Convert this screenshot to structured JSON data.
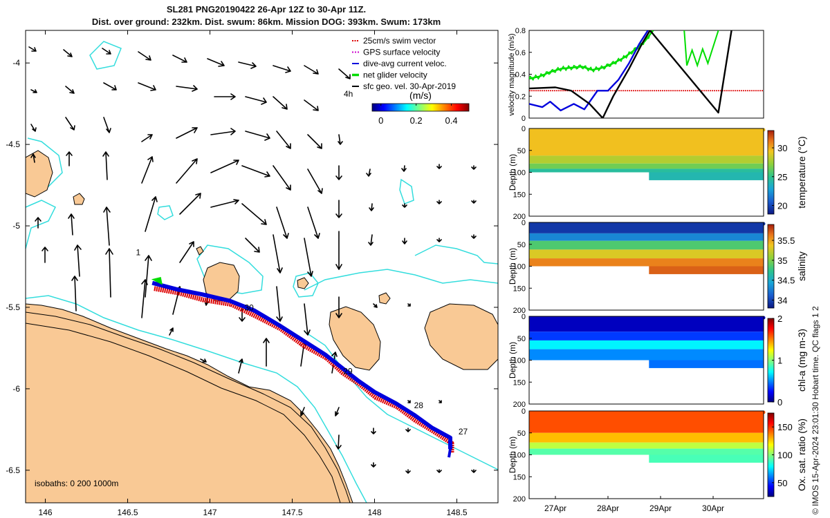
{
  "title": {
    "line1": "SL281 PNG20190422 26-Apr 12Z to 30-Apr 11Z.",
    "line2": "Dist. over ground: 232km. Dist. swum: 86km. Mission DOG: 393km. Swum: 173km"
  },
  "credit": "© IMOS 15-Apr-2024 23:01:30 Hobart time. QC flags 1  2",
  "chart_data": [
    {
      "type": "scatter",
      "name": "map",
      "xticks": [
        "146",
        "146.5",
        "147",
        "147.5",
        "148",
        "148.5"
      ],
      "xtick_values": [
        146,
        146.5,
        147,
        147.5,
        148,
        148.5
      ],
      "yticks": [
        "-4",
        "-4.5",
        "-5",
        "-5.5",
        "-6",
        "-6.5"
      ],
      "ytick_values": [
        -4,
        -4.5,
        -5,
        -5.5,
        -6,
        -6.5
      ],
      "xlim": [
        145.88,
        148.75
      ],
      "ylim": [
        -6.7,
        -3.8
      ],
      "legend": [
        {
          "label": "25cm/s swim vector",
          "color": "#dd0000"
        },
        {
          "label": "GPS surface velocity",
          "color": "#cc00cc"
        },
        {
          "label": "dive-avg current veloc.",
          "color": "#0000dd"
        },
        {
          "label": "net glider velocity",
          "color": "#00dd00"
        },
        {
          "label": "sfc geo. vel. 30-Apr-2019",
          "color": "#000000"
        }
      ],
      "colorbar": {
        "label": "(m/s)",
        "ticks": [
          "0",
          "0.2",
          "0.4"
        ],
        "tick_values": [
          0,
          0.2,
          0.4
        ],
        "range": [
          -0.05,
          0.5
        ]
      },
      "annotations": {
        "scale_label": "4h",
        "isobaths": "isobaths: 0   200  1000m"
      },
      "track": [
        [
          148.46,
          -6.37
        ],
        [
          148.46,
          -6.3
        ],
        [
          148.35,
          -6.24
        ],
        [
          148.24,
          -6.16
        ],
        [
          148.13,
          -6.09
        ],
        [
          148.0,
          -6.02
        ],
        [
          147.9,
          -5.95
        ],
        [
          147.8,
          -5.87
        ],
        [
          147.7,
          -5.79
        ],
        [
          147.56,
          -5.7
        ],
        [
          147.42,
          -5.61
        ],
        [
          147.27,
          -5.52
        ],
        [
          147.12,
          -5.46
        ],
        [
          146.95,
          -5.42
        ],
        [
          146.8,
          -5.39
        ],
        [
          146.65,
          -5.35
        ]
      ],
      "day_labels": [
        {
          "text": "27",
          "lon": 148.51,
          "lat": -6.28
        },
        {
          "text": "28",
          "lon": 148.24,
          "lat": -6.12
        },
        {
          "text": "29",
          "lon": 147.81,
          "lat": -5.91
        },
        {
          "text": "30",
          "lon": 147.21,
          "lat": -5.52
        },
        {
          "text": "1",
          "lon": 146.55,
          "lat": -5.18
        }
      ]
    },
    {
      "type": "line",
      "name": "velocity",
      "ylabel": "velocity magnitude (m/s)",
      "yticks": [
        "0",
        "0.2",
        "0.4",
        "0.6",
        "0.8"
      ],
      "ytick_values": [
        0,
        0.2,
        0.4,
        0.6,
        0.8
      ],
      "ylim": [
        0,
        0.8
      ],
      "xlim": [
        26.5,
        30.96
      ],
      "series": [
        {
          "name": "swim vector",
          "color": "#dd0000",
          "x": [
            26.5,
            30.96
          ],
          "y": [
            0.25,
            0.25
          ]
        },
        {
          "name": "net glider velocity",
          "color": "#00dd00",
          "x": [
            26.5,
            26.7,
            26.9,
            27.1,
            27.3,
            27.5,
            27.7,
            27.9,
            28.1,
            28.3,
            28.5,
            28.7,
            28.86
          ],
          "y": [
            0.36,
            0.38,
            0.42,
            0.45,
            0.46,
            0.47,
            0.44,
            0.46,
            0.5,
            0.55,
            0.62,
            0.7,
            0.8
          ]
        },
        {
          "name": "dive-avg current",
          "color": "#0000dd",
          "x": [
            26.5,
            26.75,
            26.9,
            27.1,
            27.35,
            27.55,
            27.8,
            28.0,
            28.2,
            28.4,
            28.6,
            28.76
          ],
          "y": [
            0.13,
            0.1,
            0.15,
            0.07,
            0.13,
            0.08,
            0.25,
            0.25,
            0.35,
            0.5,
            0.68,
            0.8
          ]
        },
        {
          "name": "sfc geo. vel.",
          "color": "#000000",
          "x": [
            26.5,
            27.0,
            27.3,
            27.65,
            27.9,
            28.1,
            28.4,
            28.65,
            28.8,
            30.1,
            30.35
          ],
          "y": [
            0.27,
            0.28,
            0.25,
            0.13,
            0.0,
            0.2,
            0.45,
            0.68,
            0.8,
            0.05,
            0.8
          ]
        }
      ]
    },
    {
      "type": "heatmap",
      "name": "temperature",
      "ylabel": "Depth (m)",
      "cbar_label": "temperature (°C)",
      "cbar_ticks": [
        "20",
        "25",
        "30"
      ],
      "cbar_tick_values": [
        20,
        25,
        30
      ],
      "cbar_range": [
        18.5,
        33
      ],
      "yticks": [
        "0",
        "50",
        "100",
        "150",
        "200"
      ],
      "ytick_values": [
        0,
        50,
        100,
        150,
        200
      ],
      "colormap": "parula",
      "bands": [
        {
          "top": 0,
          "bottom": 62,
          "value": 29.5
        },
        {
          "top": 62,
          "bottom": 80,
          "value": 28
        },
        {
          "top": 80,
          "bottom": 92,
          "value": 26.5
        },
        {
          "top": 92,
          "bottom": 100,
          "value": 24.5
        }
      ],
      "deep_segment": {
        "from_day": 28.78,
        "bottom": 118,
        "value": 24
      }
    },
    {
      "type": "heatmap",
      "name": "salinity",
      "ylabel": "Depth (m)",
      "cbar_label": "salinity",
      "cbar_ticks": [
        "34",
        "34.5",
        "35",
        "35.5"
      ],
      "cbar_tick_values": [
        34,
        34.5,
        35,
        35.5
      ],
      "cbar_range": [
        33.8,
        35.9
      ],
      "yticks": [
        "0",
        "50",
        "100",
        "150",
        "200"
      ],
      "ytick_values": [
        0,
        50,
        100,
        150,
        200
      ],
      "colormap": "parula",
      "bands": [
        {
          "top": 0,
          "bottom": 25,
          "value": 33.95
        },
        {
          "top": 25,
          "bottom": 42,
          "value": 34.3
        },
        {
          "top": 42,
          "bottom": 62,
          "value": 34.85
        },
        {
          "top": 62,
          "bottom": 82,
          "value": 35.3
        },
        {
          "top": 82,
          "bottom": 100,
          "value": 35.6
        }
      ],
      "deep_segment": {
        "from_day": 28.78,
        "bottom": 118,
        "value": 35.7
      }
    },
    {
      "type": "heatmap",
      "name": "chl-a",
      "ylabel": "Depth (m)",
      "cbar_label": "chl-a (mg m-3)",
      "cbar_ticks": [
        "0",
        "1",
        "2"
      ],
      "cbar_tick_values": [
        0,
        1,
        2
      ],
      "cbar_range": [
        0,
        2
      ],
      "yticks": [
        "0",
        "50",
        "100",
        "150",
        "200"
      ],
      "ytick_values": [
        0,
        50,
        100,
        150,
        200
      ],
      "colormap": "parula",
      "bands": [
        {
          "top": 0,
          "bottom": 35,
          "value": 0.12
        },
        {
          "top": 35,
          "bottom": 55,
          "value": 0.35
        },
        {
          "top": 55,
          "bottom": 75,
          "value": 0.7
        },
        {
          "top": 75,
          "bottom": 100,
          "value": 0.5
        }
      ],
      "deep_segment": {
        "from_day": 28.78,
        "bottom": 118,
        "value": 0.45
      }
    },
    {
      "type": "heatmap",
      "name": "oxygen",
      "ylabel": "Depth (m)",
      "cbar_label": "Ox. sat. ratio (%)",
      "cbar_ticks": [
        "50",
        "100",
        "150"
      ],
      "cbar_tick_values": [
        50,
        100,
        150
      ],
      "cbar_range": [
        25,
        175
      ],
      "yticks": [
        "0",
        "50",
        "100",
        "150",
        "200"
      ],
      "ytick_values": [
        0,
        50,
        100,
        150,
        200
      ],
      "xticks": [
        "27Apr",
        "28Apr",
        "29Apr",
        "30Apr"
      ],
      "xtick_values": [
        27,
        28,
        29,
        30
      ],
      "colormap": "parula",
      "bands": [
        {
          "top": 0,
          "bottom": 50,
          "value": 145
        },
        {
          "top": 50,
          "bottom": 72,
          "value": 128
        },
        {
          "top": 72,
          "bottom": 86,
          "value": 108
        },
        {
          "top": 86,
          "bottom": 100,
          "value": 92
        }
      ],
      "deep_segment": {
        "from_day": 28.78,
        "bottom": 118,
        "value": 90
      }
    }
  ]
}
